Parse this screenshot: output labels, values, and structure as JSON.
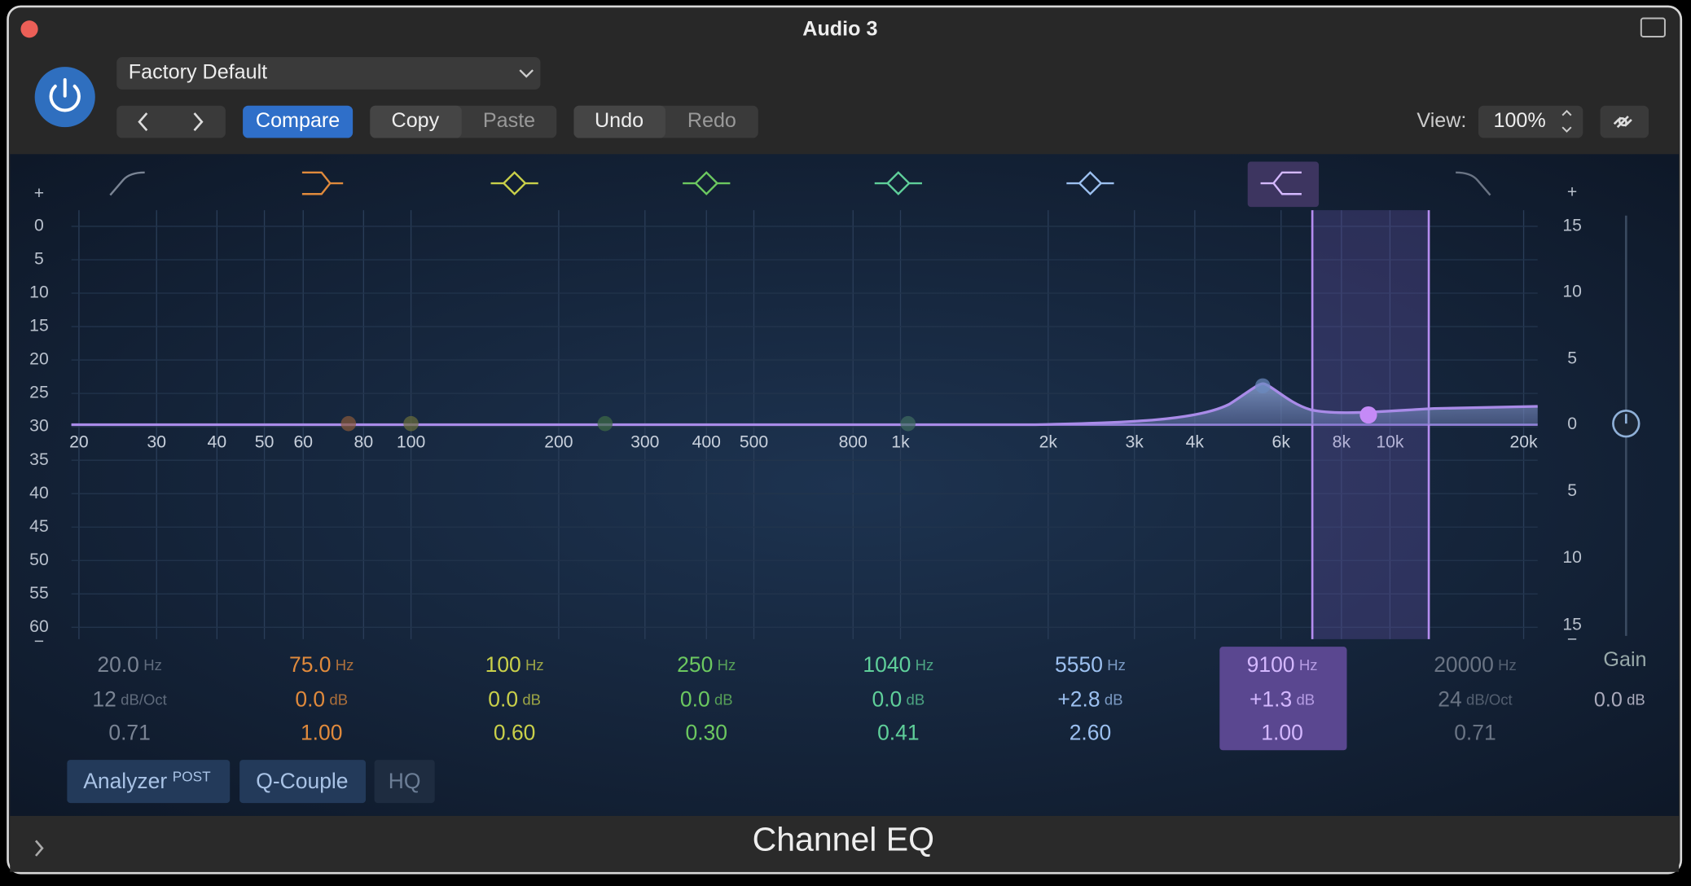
{
  "window": {
    "title": "Audio 3"
  },
  "toolbar": {
    "preset": "Factory Default",
    "compare": "Compare",
    "copy": "Copy",
    "paste": "Paste",
    "undo": "Undo",
    "redo": "Redo",
    "view_label": "View:",
    "view_value": "100%"
  },
  "display": {
    "freq_labels": [
      "20",
      "30",
      "40",
      "50",
      "60",
      "80",
      "100",
      "200",
      "300",
      "400",
      "500",
      "800",
      "1k",
      "2k",
      "3k",
      "4k",
      "6k",
      "8k",
      "10k",
      "20k"
    ],
    "left_scale": [
      "+",
      "0",
      "5",
      "10",
      "15",
      "20",
      "25",
      "30",
      "35",
      "40",
      "45",
      "50",
      "55",
      "60",
      "−"
    ],
    "right_scale": [
      "+",
      "15",
      "10",
      "5",
      "0",
      "5",
      "10",
      "15",
      "−"
    ]
  },
  "bands": [
    {
      "freq": "20.0",
      "freq_unit": "Hz",
      "gain": "12",
      "gain_unit": "dB/Oct",
      "q": "0.71"
    },
    {
      "freq": "75.0",
      "freq_unit": "Hz",
      "gain": "0.0",
      "gain_unit": "dB",
      "q": "1.00"
    },
    {
      "freq": "100",
      "freq_unit": "Hz",
      "gain": "0.0",
      "gain_unit": "dB",
      "q": "0.60"
    },
    {
      "freq": "250",
      "freq_unit": "Hz",
      "gain": "0.0",
      "gain_unit": "dB",
      "q": "0.30"
    },
    {
      "freq": "1040",
      "freq_unit": "Hz",
      "gain": "0.0",
      "gain_unit": "dB",
      "q": "0.41"
    },
    {
      "freq": "5550",
      "freq_unit": "Hz",
      "gain": "+2.8",
      "gain_unit": "dB",
      "q": "2.60"
    },
    {
      "freq": "9100",
      "freq_unit": "Hz",
      "gain": "+1.3",
      "gain_unit": "dB",
      "q": "1.00"
    },
    {
      "freq": "20000",
      "freq_unit": "Hz",
      "gain": "24",
      "gain_unit": "dB/Oct",
      "q": "0.71"
    }
  ],
  "gain": {
    "label": "Gain",
    "value": "0.0",
    "unit": "dB"
  },
  "buttons": {
    "analyzer": "Analyzer",
    "analyzer_tag": "POST",
    "q_couple": "Q-Couple",
    "hq": "HQ"
  },
  "footer": {
    "title": "Channel EQ"
  }
}
